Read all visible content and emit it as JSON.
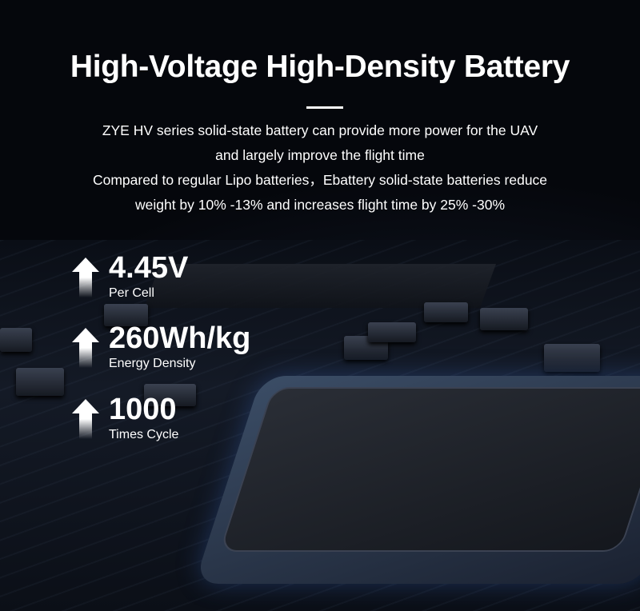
{
  "title": "High-Voltage High-Density Battery",
  "description": [
    "ZYE HV series solid-state battery can provide more power for the UAV",
    "and largely improve the flight time",
    "Compared to regular Lipo batteries，Ebattery solid-state batteries reduce",
    "weight by 10% -13% and increases flight time by 25% -30%"
  ],
  "stats": [
    {
      "value": "4.45V",
      "label": "Per Cell",
      "icon": "arrow-up-icon"
    },
    {
      "value": "260Wh/kg",
      "label": "Energy Density",
      "icon": "arrow-up-icon"
    },
    {
      "value": "1000",
      "label": "Times Cycle",
      "icon": "arrow-up-icon"
    }
  ]
}
